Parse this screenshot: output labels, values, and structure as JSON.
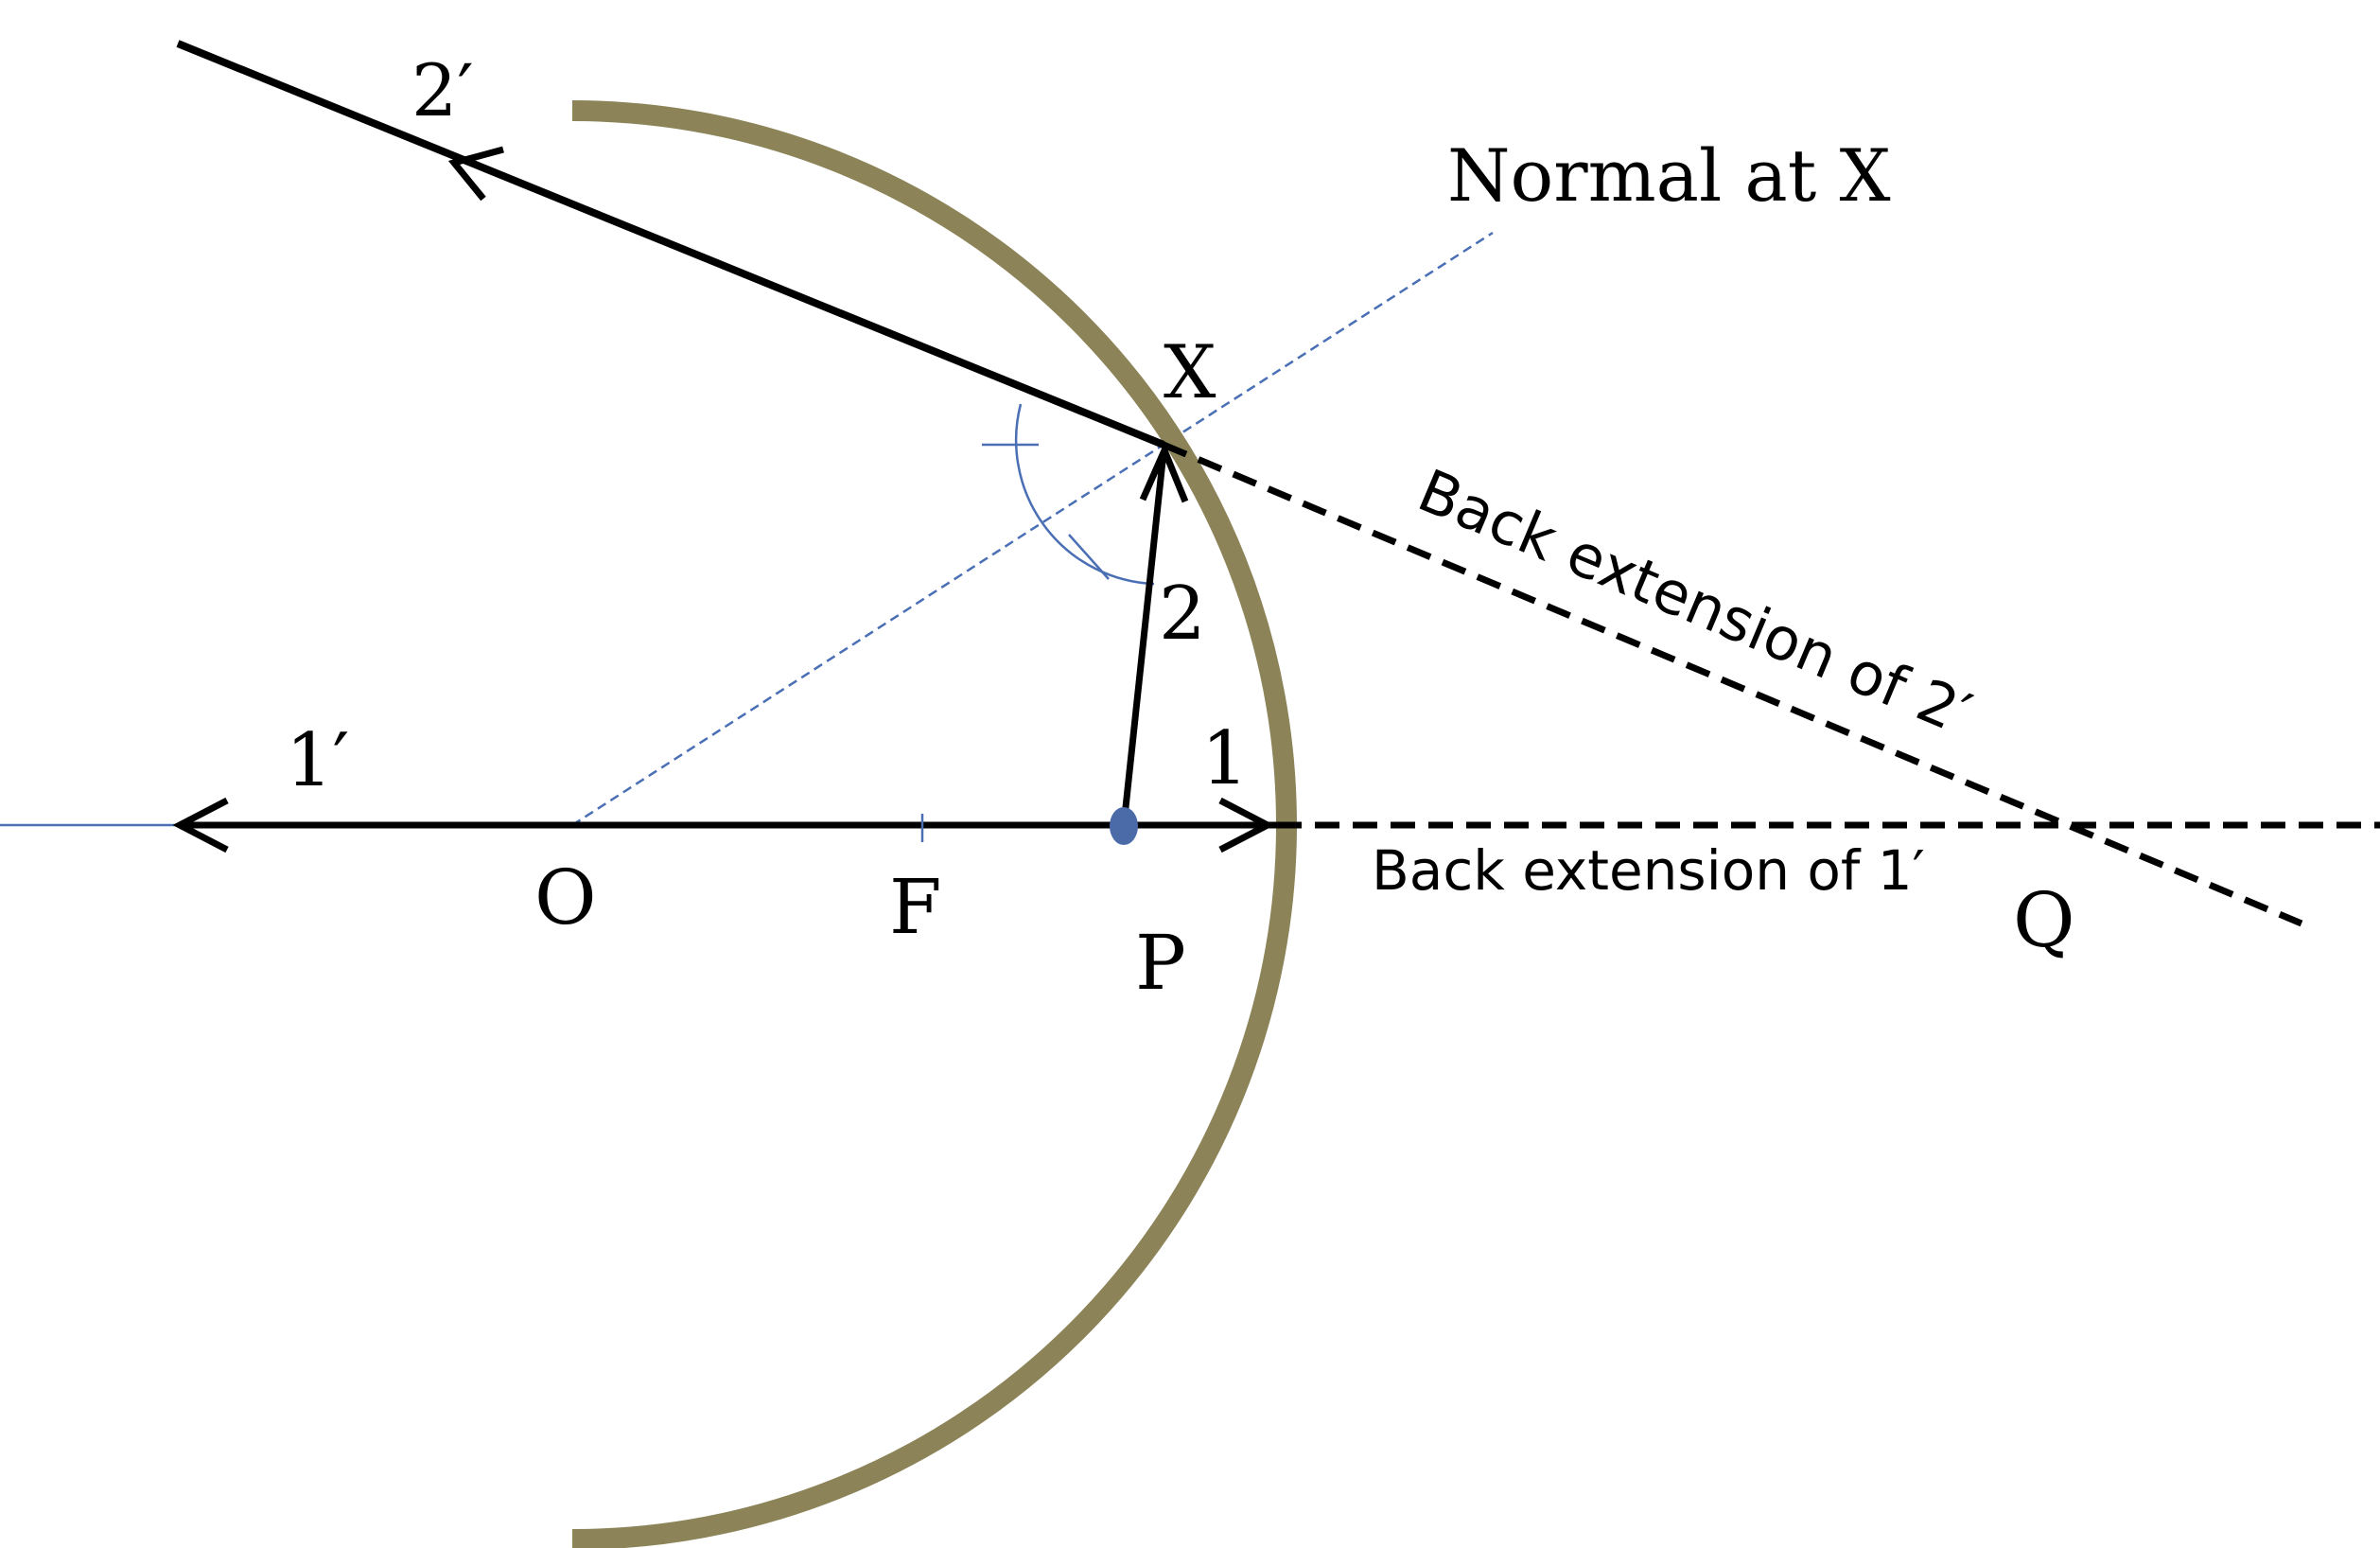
{
  "colors": {
    "mirror": "#8c8458",
    "ray": "#000000",
    "normal": "#4a6fb5",
    "point": "#4a6aa8",
    "background": "#ffffff"
  },
  "labels": {
    "ray_2_prime": "2′",
    "normal_at_x": "Normal at X",
    "point_x": "X",
    "ray_2": "2",
    "ray_1_prime": "1′",
    "ray_1": "1",
    "point_o": "O",
    "point_f": "F",
    "point_p": "P",
    "point_q": "Q",
    "back_extension_2": "Back extension of 2′",
    "back_extension_1": "Back extension of 1′"
  }
}
